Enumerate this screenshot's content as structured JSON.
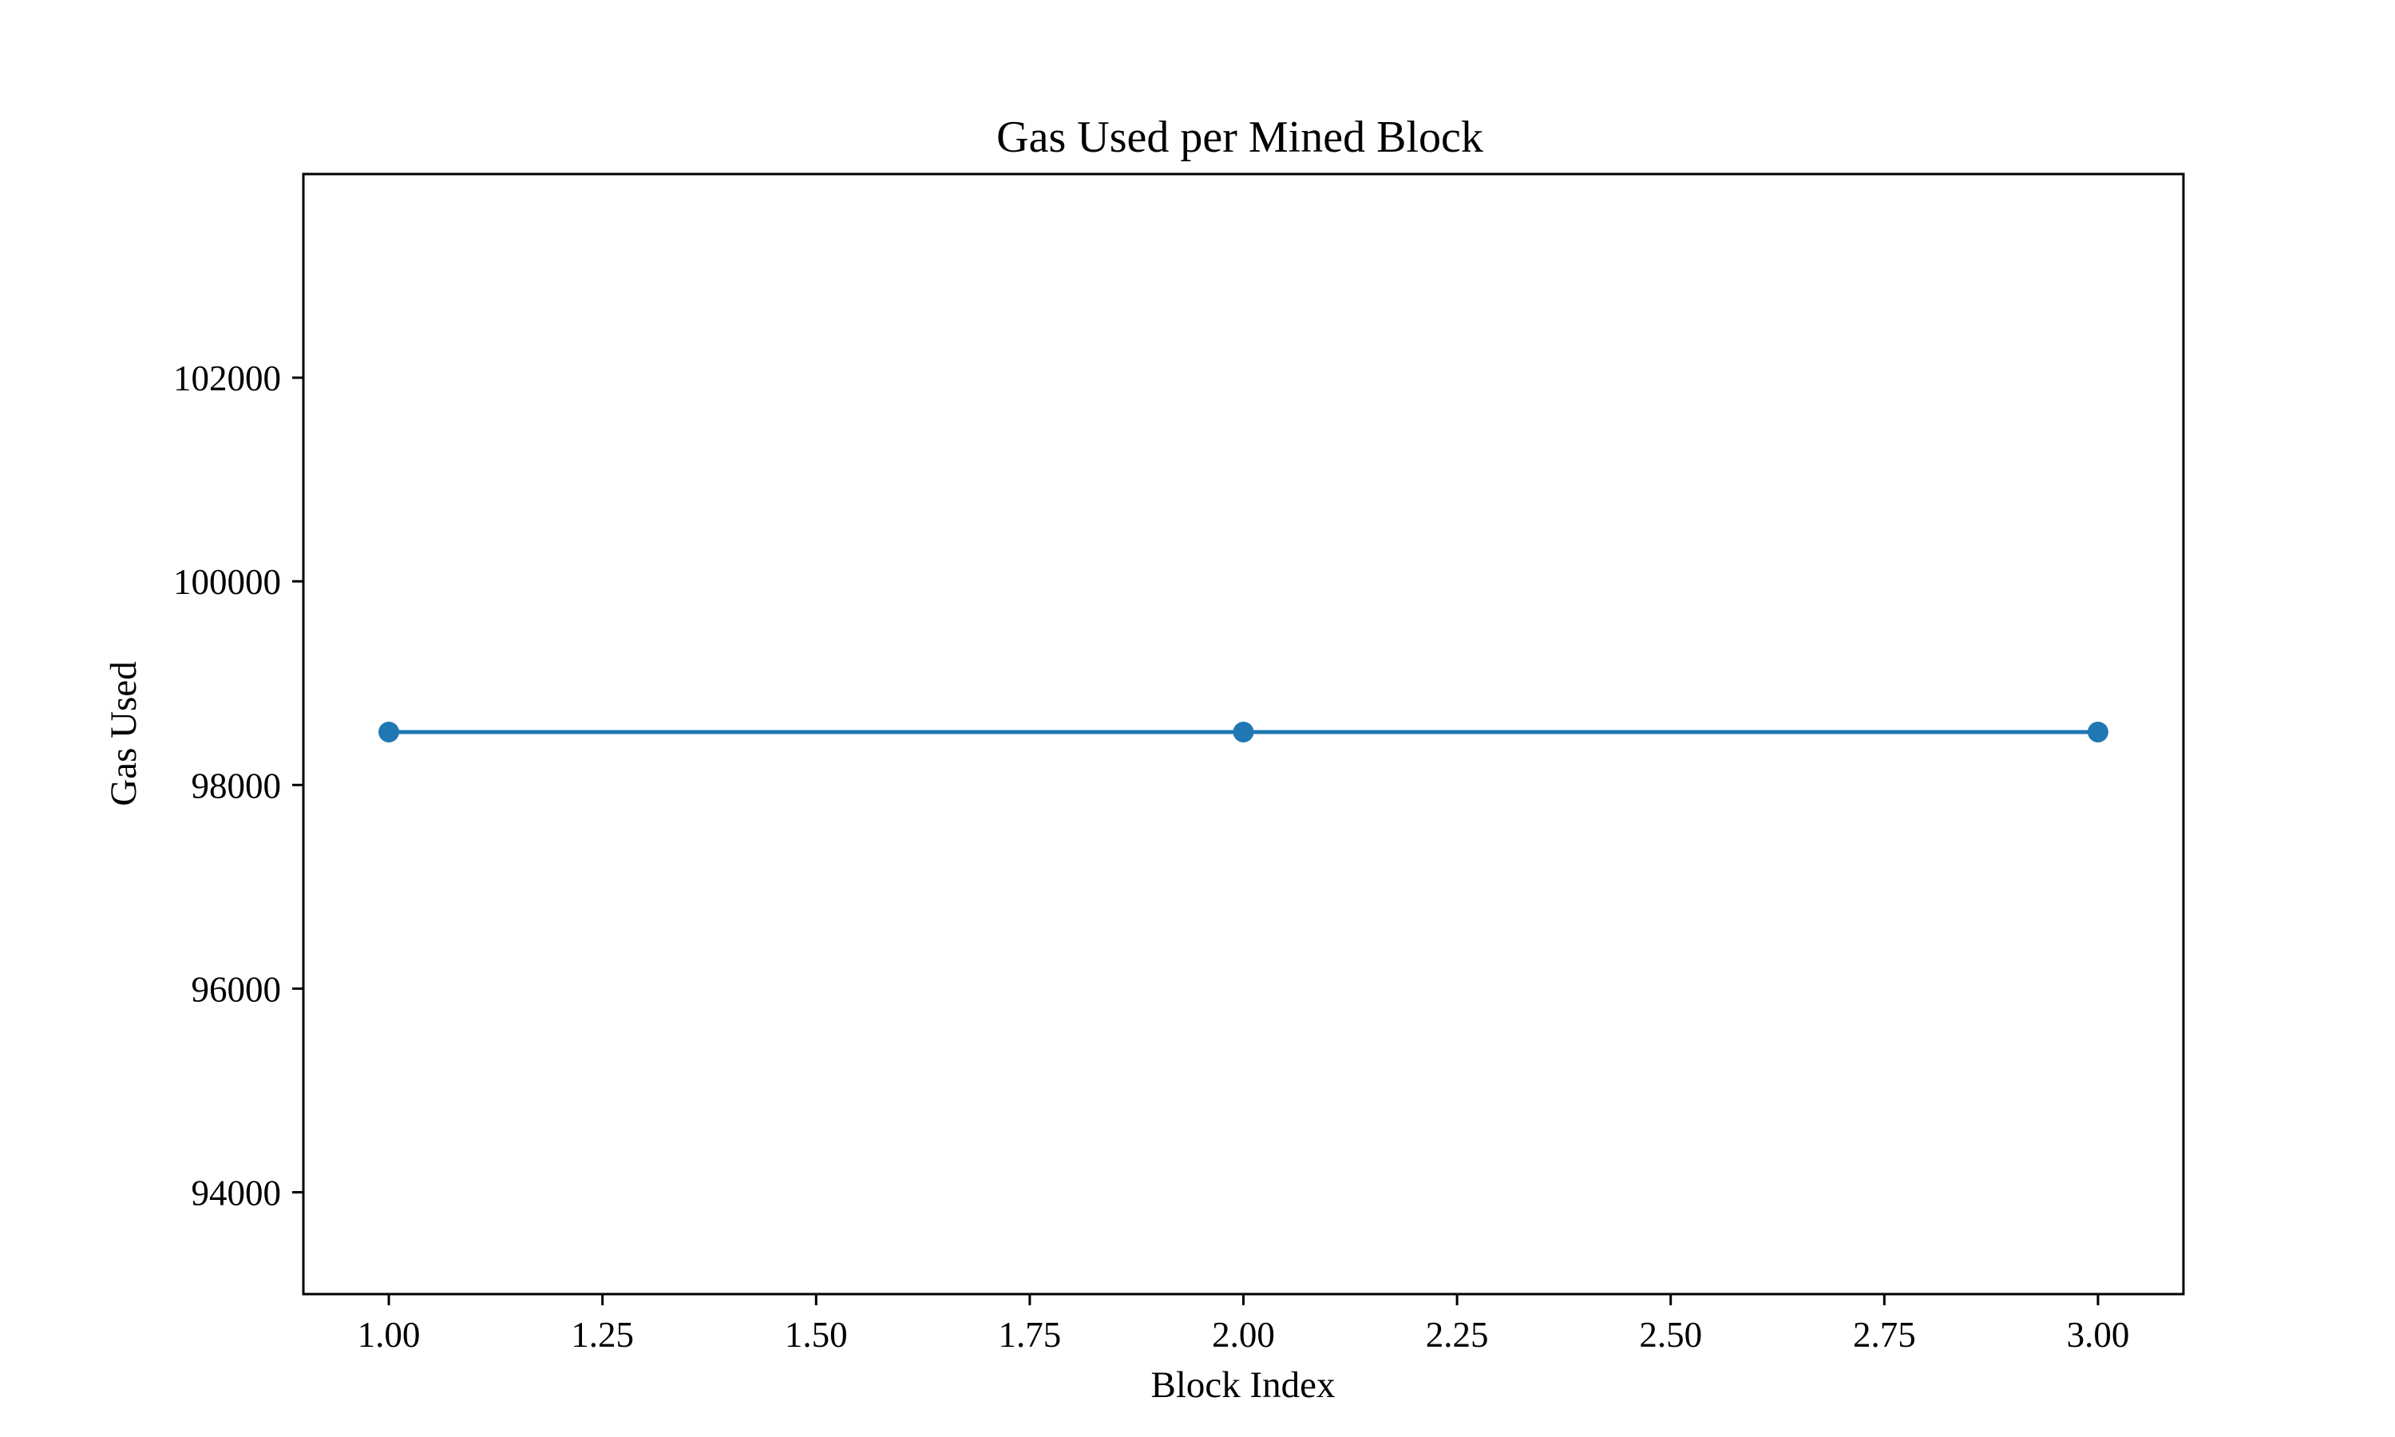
{
  "chart_data": {
    "type": "line",
    "title": "Gas Used per Mined Block",
    "xlabel": "Block Index",
    "ylabel": "Gas Used",
    "xlim": [
      0.9,
      3.1
    ],
    "ylim": [
      93000,
      104000
    ],
    "xticks": [
      1.0,
      1.25,
      1.5,
      1.75,
      2.0,
      2.25,
      2.5,
      2.75,
      3.0
    ],
    "xtick_labels": [
      "1.00",
      "1.25",
      "1.50",
      "1.75",
      "2.00",
      "2.25",
      "2.50",
      "2.75",
      "3.00"
    ],
    "yticks": [
      94000,
      96000,
      98000,
      100000,
      102000
    ],
    "ytick_labels": [
      "94000",
      "96000",
      "98000",
      "100000",
      "102000"
    ],
    "grid": false,
    "legend": false,
    "series": [
      {
        "x": [
          1,
          2,
          3
        ],
        "values": [
          98520,
          98520,
          98520
        ],
        "color": "#1f77b4",
        "marker": "circle"
      }
    ]
  }
}
